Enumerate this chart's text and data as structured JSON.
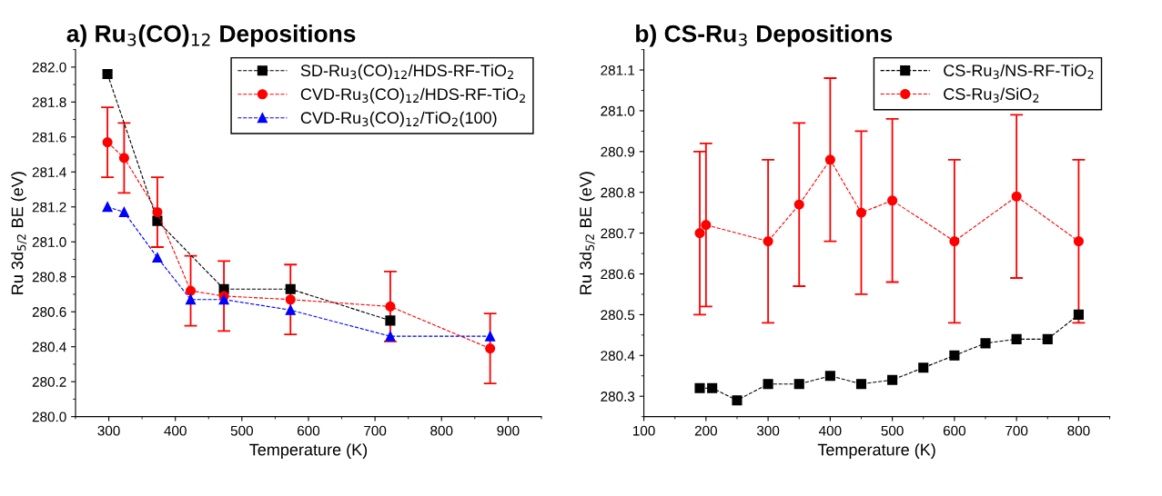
{
  "chart_data": [
    {
      "type": "line",
      "title": "a) Ru$_{3}$(CO)$_{12}$ Depositions",
      "xlabel": "Temperature (K)",
      "ylabel": "Ru 3d$_{5/2}$ BE (eV)",
      "xlim": [
        250,
        950
      ],
      "xticks": [
        300,
        400,
        500,
        600,
        700,
        800,
        900
      ],
      "ylim": [
        280.0,
        282.1
      ],
      "yticks": [
        {
          "value": 280.0,
          "label": "280.0"
        },
        {
          "value": 280.2,
          "label": "280.2"
        },
        {
          "value": 280.4,
          "label": "280.4"
        },
        {
          "value": 280.6,
          "label": "280.6"
        },
        {
          "value": 280.8,
          "label": "280.8"
        },
        {
          "value": 281.0,
          "label": "281.0"
        },
        {
          "value": 281.2,
          "label": "281.2"
        },
        {
          "value": 281.4,
          "label": "281.4"
        },
        {
          "value": 281.6,
          "label": "281.6"
        },
        {
          "value": 281.8,
          "label": "281.8"
        },
        {
          "value": 282.0,
          "label": "282.0"
        }
      ],
      "grid": false,
      "legend": "top right",
      "line_style": "dashed",
      "series": [
        {
          "name": "SD-Ru$_{3}$(CO)$_{12}$/HDS-RF-TiO$_{2}$",
          "color": "#000000",
          "marker": "square",
          "x": [
            298,
            373,
            473,
            573,
            723
          ],
          "values": [
            281.96,
            281.12,
            280.73,
            280.73,
            280.55
          ]
        },
        {
          "name": "CVD-Ru$_{3}$(CO)$_{12}$/HDS-RF-TiO$_{2}$",
          "color": "#ff0000",
          "marker": "circle",
          "x": [
            298,
            323,
            373,
            423,
            473,
            573,
            723,
            873
          ],
          "values": [
            281.57,
            281.48,
            281.17,
            280.72,
            280.69,
            280.67,
            280.63,
            280.39
          ],
          "errors": [
            0.2,
            0.2,
            0.2,
            0.2,
            0.2,
            0.2,
            0.2,
            0.2
          ]
        },
        {
          "name": "CVD-Ru$_{3}$(CO)$_{12}$/TiO$_{2}$(100)",
          "color": "#0000ff",
          "marker": "triangle",
          "x": [
            298,
            323,
            373,
            423,
            473,
            573,
            723,
            873
          ],
          "values": [
            281.2,
            281.17,
            280.91,
            280.67,
            280.67,
            280.61,
            280.46,
            280.46
          ]
        }
      ]
    },
    {
      "type": "line",
      "title": "b) CS-Ru$_{3}$ Depositions",
      "xlabel": "Temperature (K)",
      "ylabel": "Ru 3d$_{5/2}$ BE (eV)",
      "xlim": [
        100,
        850
      ],
      "xticks": [
        100,
        200,
        300,
        400,
        500,
        600,
        700,
        800
      ],
      "ylim": [
        280.25,
        281.15
      ],
      "yticks": [
        {
          "value": 280.3,
          "label": "280.3"
        },
        {
          "value": 280.4,
          "label": "280.4"
        },
        {
          "value": 280.5,
          "label": "280.5"
        },
        {
          "value": 280.6,
          "label": "280.6"
        },
        {
          "value": 280.7,
          "label": "280.7"
        },
        {
          "value": 280.8,
          "label": "280.8"
        },
        {
          "value": 280.9,
          "label": "280.9"
        },
        {
          "value": 281.0,
          "label": "281.0"
        },
        {
          "value": 281.1,
          "label": "281.1"
        }
      ],
      "grid": false,
      "legend": "top right",
      "line_style": "dashed",
      "series": [
        {
          "name": "CS-Ru$_{3}$/NS-RF-TiO$_{2}$",
          "color": "#000000",
          "marker": "square",
          "x": [
            190,
            210,
            250,
            300,
            350,
            400,
            450,
            500,
            550,
            600,
            650,
            700,
            750,
            800
          ],
          "values": [
            280.32,
            280.32,
            280.29,
            280.33,
            280.33,
            280.35,
            280.33,
            280.34,
            280.37,
            280.4,
            280.43,
            280.44,
            280.44,
            280.5
          ]
        },
        {
          "name": "CS-Ru$_{3}$/SiO$_{2}$",
          "color": "#ff0000",
          "marker": "circle",
          "x": [
            190,
            200,
            300,
            350,
            400,
            450,
            500,
            600,
            700,
            800
          ],
          "values": [
            280.7,
            280.72,
            280.68,
            280.77,
            280.88,
            280.75,
            280.78,
            280.68,
            280.79,
            280.68
          ],
          "errors": [
            0.2,
            0.2,
            0.2,
            0.2,
            0.2,
            0.2,
            0.2,
            0.2,
            0.2,
            0.2
          ]
        }
      ]
    }
  ]
}
